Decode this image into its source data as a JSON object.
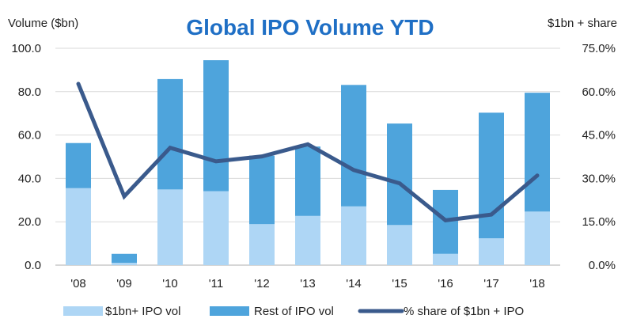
{
  "chart_data": {
    "type": "bar",
    "subtype": "stacked-bar-with-line",
    "title": "Global IPO Volume YTD",
    "ylabel": "Volume ($bn)",
    "y2label": "$1bn + share",
    "categories": [
      "'08",
      "'09",
      "'10",
      "'11",
      "'12",
      "'13",
      "'14",
      "'15",
      "'16",
      "'17",
      "'18"
    ],
    "ylim": [
      0,
      100
    ],
    "yticks": [
      "0.0",
      "20.0",
      "40.0",
      "60.0",
      "80.0",
      "100.0"
    ],
    "ytick_values": [
      0,
      20,
      40,
      60,
      80,
      100
    ],
    "y2lim": [
      0,
      75
    ],
    "y2ticks": [
      "0.0%",
      "15.0%",
      "30.0%",
      "45.0%",
      "60.0%",
      "75.0%"
    ],
    "y2tick_values": [
      0,
      15,
      30,
      45,
      60,
      75
    ],
    "grid": true,
    "legend_position": "bottom",
    "series": [
      {
        "name": "$1bn+ IPO vol",
        "kind": "bar",
        "axis": "left",
        "color": "#aed6f5",
        "values": [
          35.5,
          1.1,
          34.9,
          34.1,
          18.9,
          22.7,
          27.1,
          18.5,
          5.2,
          12.4,
          24.7
        ]
      },
      {
        "name": "Rest of IPO vol",
        "kind": "bar",
        "axis": "left",
        "color": "#4ea4dc",
        "values": [
          20.8,
          4.1,
          50.9,
          60.4,
          31.6,
          32.0,
          56.0,
          46.8,
          29.5,
          57.9,
          54.8
        ]
      },
      {
        "name": "% share of $1bn + IPO",
        "kind": "line",
        "axis": "right",
        "color": "#3a5a8c",
        "values": [
          62.7,
          23.8,
          40.6,
          35.9,
          37.6,
          41.8,
          32.9,
          28.3,
          15.5,
          17.5,
          31.0
        ]
      }
    ]
  }
}
